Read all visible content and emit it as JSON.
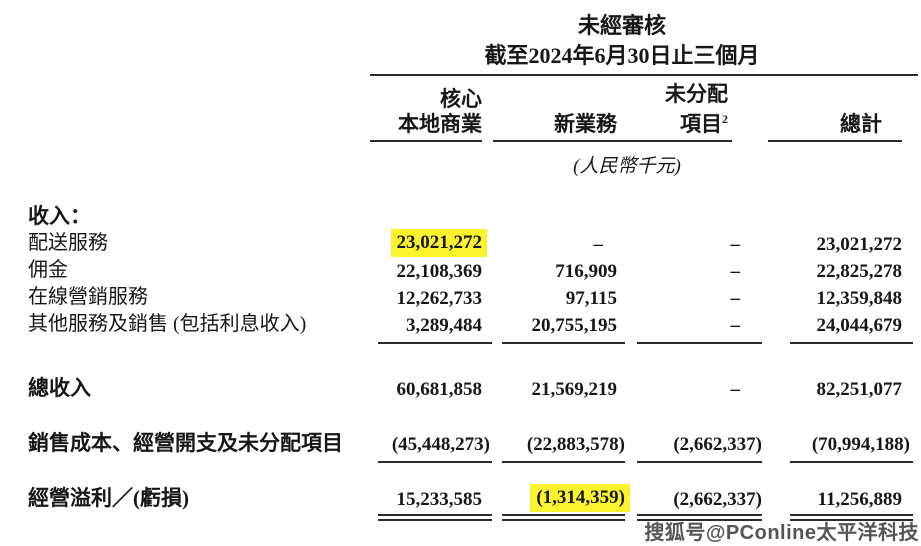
{
  "header": {
    "unaudited_label": "未經審核",
    "period_label": "截至2024年6月30日止三個月",
    "unit_note": "(人民幣千元)",
    "columns": {
      "c1_line1": "核心",
      "c1_line2": "本地商業",
      "c2": "新業務",
      "c3_line1": "未分配",
      "c3_line2": "項目",
      "c3_sup": "2",
      "c4": "總計"
    }
  },
  "table": {
    "section_header": "收入：",
    "revenue_rows": [
      {
        "label": "配送服務",
        "core_local": "23,021,272",
        "new_initiatives": "–",
        "unallocated": "–",
        "total": "23,021,272"
      },
      {
        "label": "佣金",
        "core_local": "22,108,369",
        "new_initiatives": "716,909",
        "unallocated": "–",
        "total": "22,825,278"
      },
      {
        "label": "在線營銷服務",
        "core_local": "12,262,733",
        "new_initiatives": "97,115",
        "unallocated": "–",
        "total": "12,359,848"
      },
      {
        "label": "其他服務及銷售 (包括利息收入)",
        "core_local": "3,289,484",
        "new_initiatives": "20,755,195",
        "unallocated": "–",
        "total": "24,044,679"
      }
    ],
    "total_revenue_row": {
      "label": "總收入",
      "core_local": "60,681,858",
      "new_initiatives": "21,569,219",
      "unallocated": "–",
      "total": "82,251,077"
    },
    "costs_row": {
      "label": "銷售成本、經營開支及未分配項目",
      "core_local": "(45,448,273)",
      "new_initiatives": "(22,883,578)",
      "unallocated": "(2,662,337)",
      "total": "(70,994,188)"
    },
    "operating_row": {
      "label": "經營溢利／(虧損)",
      "core_local": "15,233,585",
      "new_initiatives": "(1,314,359)",
      "unallocated": "(2,662,337)",
      "total": "11,256,889"
    },
    "highlights": [
      {
        "row": "revenue_rows.0",
        "col": "core_local"
      },
      {
        "row": "operating_row",
        "col": "new_initiatives"
      }
    ]
  },
  "watermark": {
    "text": "搜狐号@PConline太平洋科技"
  },
  "colors": {
    "text": "#171717",
    "rule": "#2b2b2b",
    "highlight": "#fbf32e",
    "watermark": "#474747"
  }
}
